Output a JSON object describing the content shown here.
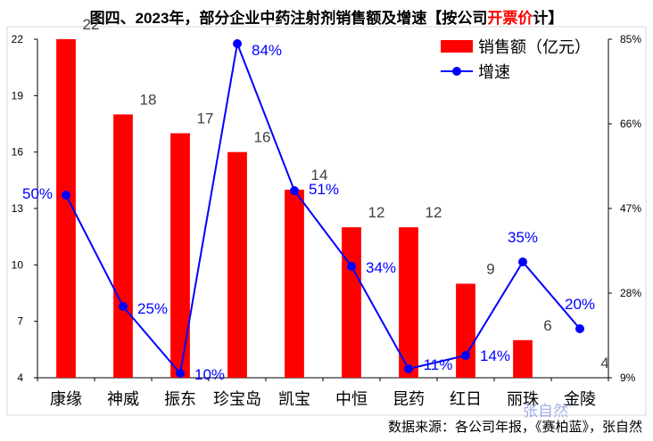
{
  "title": {
    "prefix": "图四、2023年，部分企业中药注射剂销售额及增速【按公司",
    "highlight": "开票价",
    "suffix": "计】"
  },
  "source": "数据来源：各公司年报，《赛柏蓝》，张自然",
  "watermark": "张自然",
  "colors": {
    "bar": "#ff0000",
    "line": "#0000ff",
    "axis": "#000000"
  },
  "chart_data": {
    "type": "bar",
    "categories": [
      "康缘",
      "神威",
      "振东",
      "珍宝岛",
      "凯宝",
      "中恒",
      "昆药",
      "红日",
      "丽珠",
      "金陵"
    ],
    "series": [
      {
        "name": "销售额（亿元）",
        "type": "bar",
        "axis": "left",
        "values": [
          22,
          18,
          17,
          16,
          14,
          12,
          12,
          9,
          6,
          4
        ],
        "labels": [
          "22",
          "18",
          "17",
          "16",
          "14",
          "12",
          "12",
          "9",
          "6",
          "4"
        ]
      },
      {
        "name": "增速",
        "type": "line",
        "axis": "right",
        "values": [
          50,
          25,
          10,
          84,
          51,
          34,
          11,
          14,
          35,
          20
        ],
        "labels": [
          "50%",
          "25%",
          "10%",
          "84%",
          "51%",
          "34%",
          "11%",
          "14%",
          "35%",
          "20%"
        ]
      }
    ],
    "y_left": {
      "ylim": [
        4,
        22
      ],
      "ticks": [
        "22",
        "19",
        "16",
        "13",
        "10",
        "7",
        "4"
      ]
    },
    "y_right": {
      "ylim": [
        9,
        85
      ],
      "ticks": [
        "85%",
        "66%",
        "47%",
        "28%",
        "9%"
      ]
    },
    "legend": {
      "position": "top-right",
      "entries": [
        "销售额（亿元）",
        "增速"
      ]
    },
    "grid": false
  }
}
